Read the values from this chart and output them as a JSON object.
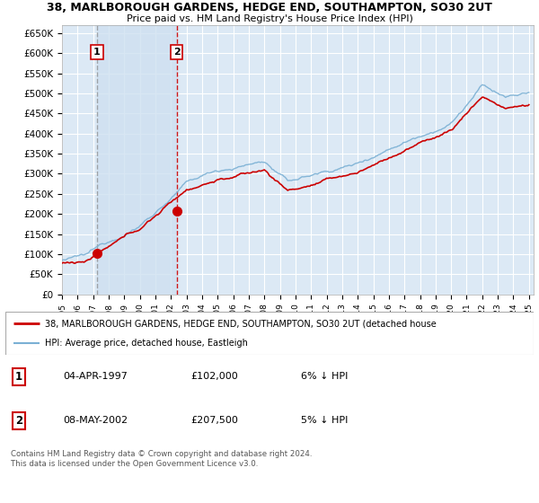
{
  "title_line1": "38, MARLBOROUGH GARDENS, HEDGE END, SOUTHAMPTON, SO30 2UT",
  "title_line2": "Price paid vs. HM Land Registry's House Price Index (HPI)",
  "background_color": "#dce9f5",
  "plot_bg_color": "#dce9f5",
  "grid_color": "#ffffff",
  "ylim": [
    0,
    670000
  ],
  "yticks": [
    0,
    50000,
    100000,
    150000,
    200000,
    250000,
    300000,
    350000,
    400000,
    450000,
    500000,
    550000,
    600000,
    650000
  ],
  "ytick_labels": [
    "£0",
    "£50K",
    "£100K",
    "£150K",
    "£200K",
    "£250K",
    "£300K",
    "£350K",
    "£400K",
    "£450K",
    "£500K",
    "£550K",
    "£600K",
    "£650K"
  ],
  "purchase1": {
    "date_num": 1997.25,
    "price": 102000,
    "label": "1"
  },
  "purchase2": {
    "date_num": 2002.37,
    "price": 207500,
    "label": "2"
  },
  "legend_items": [
    {
      "label": "38, MARLBOROUGH GARDENS, HEDGE END, SOUTHAMPTON, SO30 2UT (detached house",
      "color": "#cc0000",
      "lw": 2
    },
    {
      "label": "HPI: Average price, detached house, Eastleigh",
      "color": "#7ab0d4",
      "lw": 1.5
    }
  ],
  "table_rows": [
    {
      "num": "1",
      "date": "04-APR-1997",
      "price": "£102,000",
      "note": "6% ↓ HPI"
    },
    {
      "num": "2",
      "date": "08-MAY-2002",
      "price": "£207,500",
      "note": "5% ↓ HPI"
    }
  ],
  "footer": "Contains HM Land Registry data © Crown copyright and database right 2024.\nThis data is licensed under the Open Government Licence v3.0.",
  "hpi_line_color": "#7ab0d4",
  "price_line_color": "#cc0000",
  "shade_color": "#cfe0f0",
  "vline1_color": "#888888",
  "vline2_color": "#cc0000",
  "marker_color": "#cc0000",
  "label_box_color": "#cc0000"
}
